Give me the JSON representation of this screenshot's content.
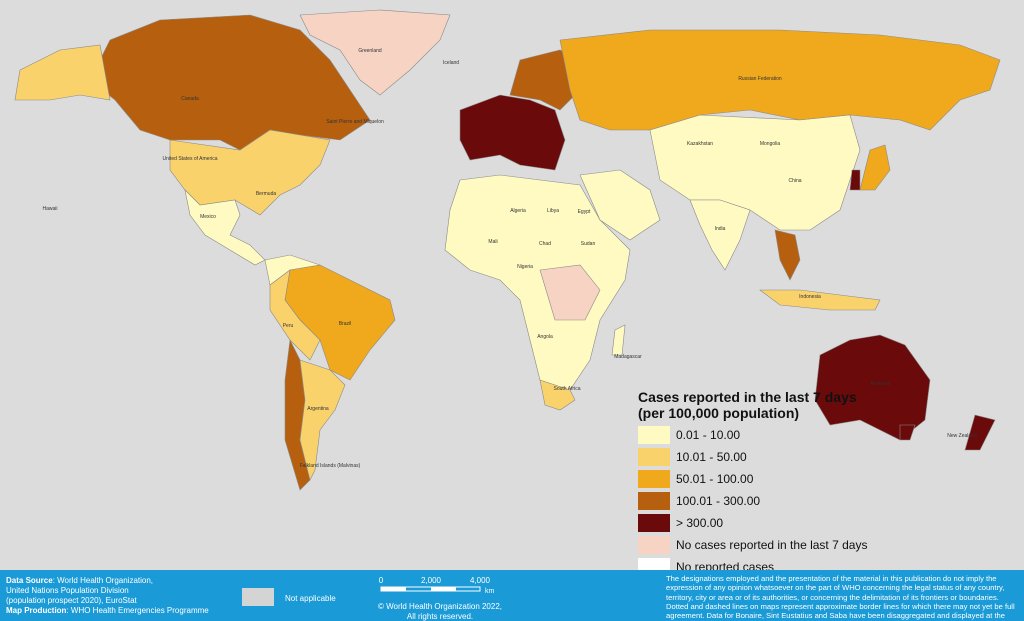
{
  "legend": {
    "title": "Cases reported in the last 7 days",
    "subtitle": "(per 100,000 population)",
    "items": [
      {
        "label": "0.01 - 10.00",
        "color": "#fffac2"
      },
      {
        "label": "10.01 - 50.00",
        "color": "#f9d26c"
      },
      {
        "label": "50.01 - 100.00",
        "color": "#f0a81c"
      },
      {
        "label": "100.01 - 300.00",
        "color": "#b6600f"
      },
      {
        "label": "> 300.00",
        "color": "#6b0a0a"
      },
      {
        "label": "No cases reported in the last 7 days",
        "color": "#f6d3c2"
      },
      {
        "label": "No reported cases",
        "color": "#ffffff"
      }
    ],
    "not_applicable": {
      "label": "Not applicable",
      "color": "#d4d4d4"
    }
  },
  "labels": [
    "Greenland",
    "Canada",
    "United States of America",
    "Russian Federation",
    "China",
    "India",
    "Brazil",
    "Australia",
    "Mongolia",
    "Kazakhstan",
    "Argentina",
    "Peru",
    "Algeria",
    "Libya",
    "Egypt",
    "Chad",
    "Sudan",
    "Nigeria",
    "Mali",
    "Angola",
    "Indonesia",
    "Mexico",
    "Bermuda",
    "Hawaii",
    "Falkland Islands (Malvinas)",
    "New Zealand",
    "Madagascar",
    "South Africa",
    "Saint Pierre and Miquelon",
    "Iceland"
  ],
  "footer": {
    "source_label": "Data Source",
    "source": ": World Health Organization,",
    "source_2": "United Nations Population Division",
    "source_3": "(population prospect 2020), EuroStat",
    "production_label": "Map Production",
    "production": ": WHO Health Emergencies Programme",
    "scale": [
      "0",
      "2,000",
      "4,000",
      "km"
    ],
    "copyright": "© World Health Organization  2022,",
    "copyright_2": "All rights reserved.",
    "disclaimer": "The designations employed and the presentation of the material in this publication do not imply the expression of any opinion whatsoever on the part of WHO concerning the legal status of any country, territory, city or area or of its authorities, or concerning the delimitation of its frontiers or boundaries. Dotted and dashed lines on maps represent approximate border lines for which there may not yet be full agreement. Data for Bonaire, Sint Eustatius and Saba have been disaggregated and displayed at the subnational level."
  }
}
